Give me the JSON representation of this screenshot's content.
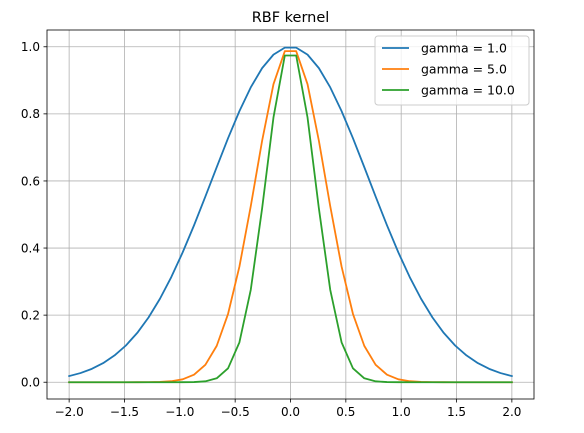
{
  "chart_data": {
    "type": "line",
    "title": "RBF kernel",
    "xlabel": "",
    "ylabel": "",
    "xlim": [
      -2.2,
      2.2
    ],
    "ylim": [
      -0.05,
      1.05
    ],
    "xticks": [
      -2.0,
      -1.5,
      -1.0,
      -0.5,
      0.0,
      0.5,
      1.0,
      1.5,
      2.0
    ],
    "xtick_labels": [
      "−2.0",
      "−1.5",
      "−1.0",
      "−0.5",
      "0.0",
      "0.5",
      "1.0",
      "1.5",
      "2.0"
    ],
    "yticks": [
      0.0,
      0.2,
      0.4,
      0.6,
      0.8,
      1.0
    ],
    "ytick_labels": [
      "0.0",
      "0.2",
      "0.4",
      "0.6",
      "0.8",
      "1.0"
    ],
    "grid": true,
    "legend_position": "top-right",
    "x_range": [
      -2.0,
      2.0
    ],
    "num_points": 40,
    "series": [
      {
        "name": "gamma = 1.0",
        "gamma": 1.0,
        "color": "#1f77b4"
      },
      {
        "name": "gamma = 5.0",
        "gamma": 5.0,
        "color": "#ff7f0e"
      },
      {
        "name": "gamma = 10.0",
        "gamma": 10.0,
        "color": "#2ca02c"
      }
    ]
  }
}
